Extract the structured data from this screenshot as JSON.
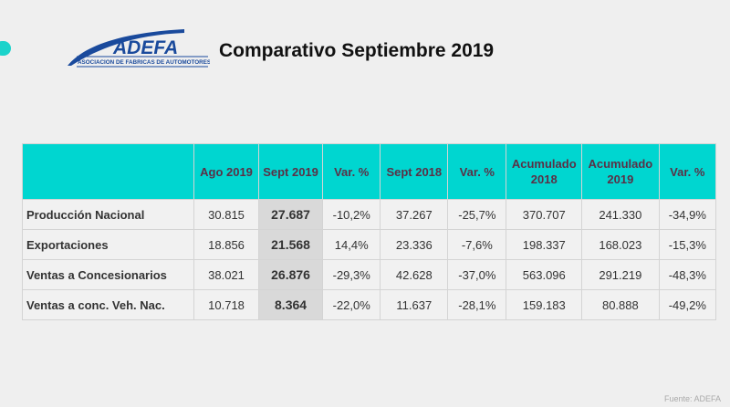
{
  "header": {
    "logo_text": "ADEFA",
    "logo_subtitle": "ASOCIACION DE FABRICAS DE AUTOMOTORES",
    "title": "Comparativo Septiembre 2019"
  },
  "table": {
    "columns": [
      "",
      "Ago 2019",
      "Sept 2019",
      "Var. %",
      "Sept 2018",
      "Var. %",
      "Acumulado 2018",
      "Acumulado 2019",
      "Var. %"
    ],
    "rows": [
      [
        "Producción Nacional",
        "30.815",
        "27.687",
        "-10,2%",
        "37.267",
        "-25,7%",
        "370.707",
        "241.330",
        "-34,9%"
      ],
      [
        "Exportaciones",
        "18.856",
        "21.568",
        "14,4%",
        "23.336",
        "-7,6%",
        "198.337",
        "168.023",
        "-15,3%"
      ],
      [
        "Ventas a Concesionarios",
        "38.021",
        "26.876",
        "-29,3%",
        "42.628",
        "-37,0%",
        "563.096",
        "291.219",
        "-48,3%"
      ],
      [
        "Ventas a conc. Veh. Nac.",
        "10.718",
        "8.364",
        "-22,0%",
        "11.637",
        "-28,1%",
        "159.183",
        "80.888",
        "-49,2%"
      ]
    ]
  },
  "footer": {
    "source": "Fuente: ADEFA"
  },
  "colors": {
    "accent": "#00d6d0",
    "logo": "#1a4a9c"
  }
}
